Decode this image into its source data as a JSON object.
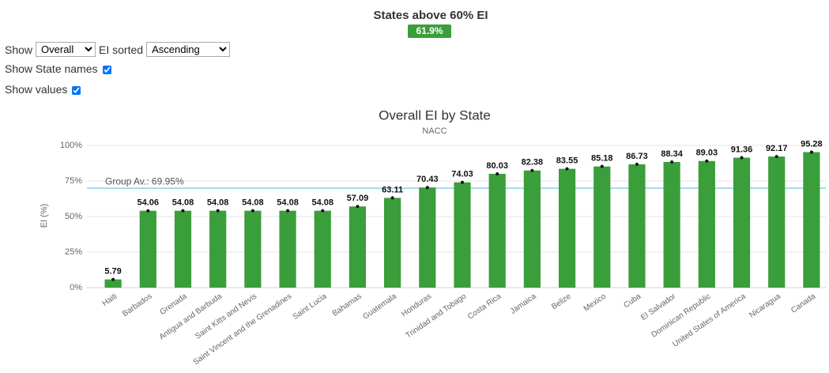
{
  "header": {
    "title": "States above 60% EI",
    "badge": "61.9%"
  },
  "controls": {
    "show_label": "Show",
    "show_value": "Overall",
    "sort_label": "EI sorted",
    "sort_value": "Ascending",
    "state_names_label": "Show State names",
    "values_label": "Show values"
  },
  "chart_data": {
    "type": "bar",
    "title": "Overall EI by State",
    "subtitle": "NACC",
    "ylabel": "EI (%)",
    "categories": [
      "Haiti",
      "Barbados",
      "Grenada",
      "Antigua and Barbuda",
      "Saint Kitts and Nevis",
      "Saint Vincent and the Grenadines",
      "Saint Lucia",
      "Bahamas",
      "Guatemala",
      "Honduras",
      "Trinidad and Tobago",
      "Costa Rica",
      "Jamaica",
      "Belize",
      "Mexico",
      "Cuba",
      "El Salvador",
      "Dominican Republic",
      "United States of America",
      "Nicaragua",
      "Canada"
    ],
    "values": [
      5.79,
      54.06,
      54.08,
      54.08,
      54.08,
      54.08,
      54.08,
      57.09,
      63.11,
      70.43,
      74.03,
      80.03,
      82.38,
      83.55,
      85.18,
      86.73,
      88.34,
      89.03,
      91.36,
      92.17,
      95.28
    ],
    "color": "#3a9e3a",
    "ylim": [
      0,
      100
    ],
    "yticks": [
      {
        "value": 0,
        "label": "0%"
      },
      {
        "value": 25,
        "label": "25%"
      },
      {
        "value": 50,
        "label": "50%"
      },
      {
        "value": 75,
        "label": "75%"
      },
      {
        "value": 100,
        "label": "100%"
      }
    ],
    "grid": true,
    "show_values": true,
    "reference_line": {
      "value": 69.95,
      "label": "Group Av.: 69.95%",
      "color": "#8ccfe6"
    }
  }
}
